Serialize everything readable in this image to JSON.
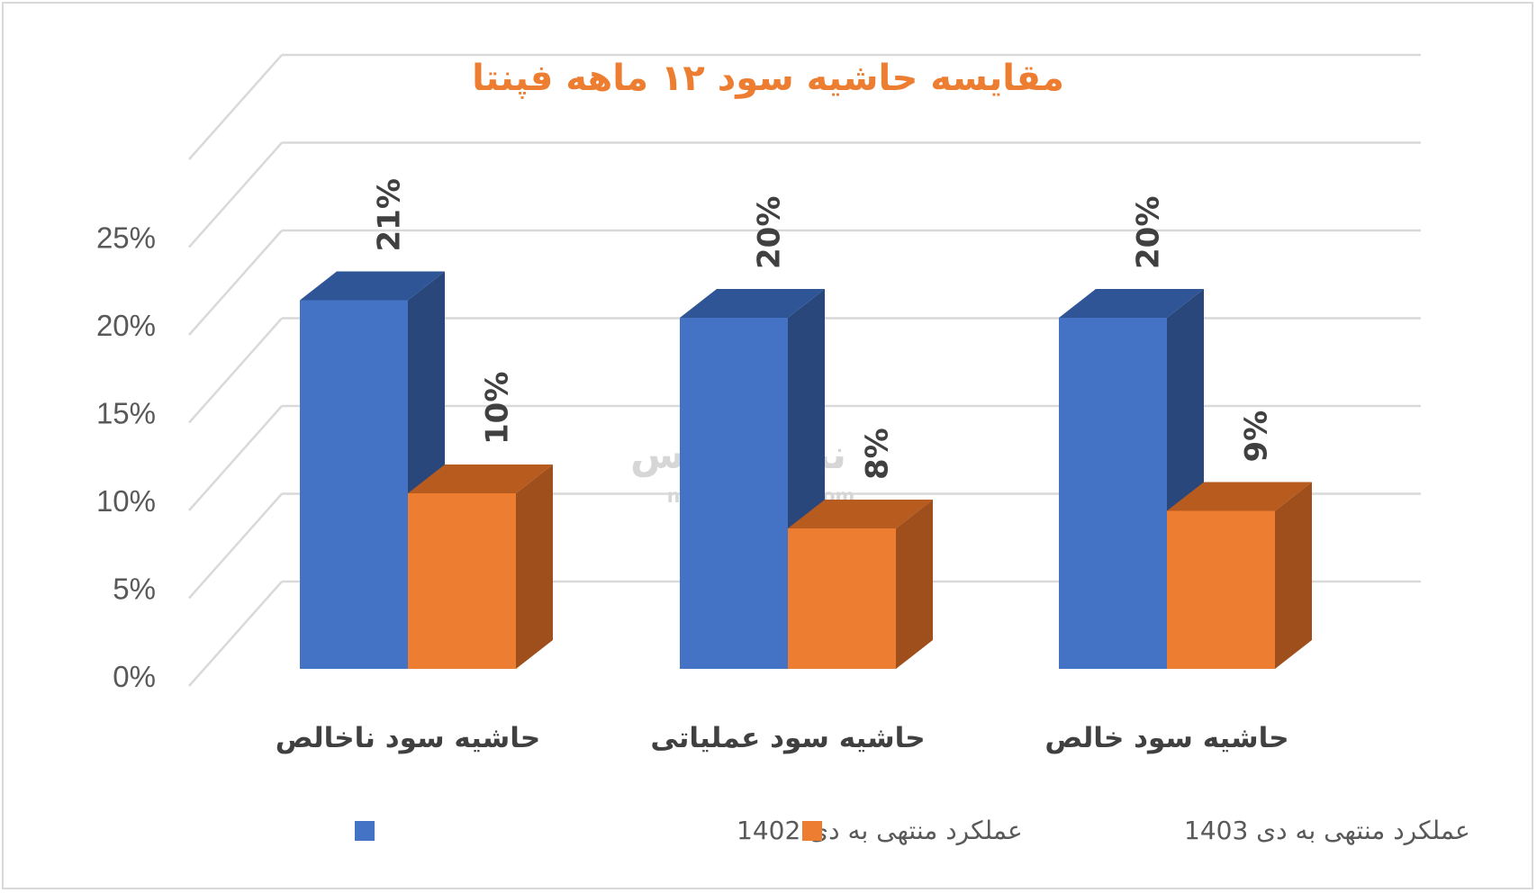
{
  "chart_data": {
    "type": "bar",
    "title": "مقایسه حاشیه سود ۱۲ ماهه فپنتا",
    "categories": [
      "حاشیه سود ناخالص",
      "حاشیه سود عملیاتی",
      "حاشیه سود خالص"
    ],
    "series": [
      {
        "name": "عملکرد منتهی به دی 1402",
        "values": [
          21,
          20,
          20
        ],
        "labels": [
          "21%",
          "20%",
          "20%"
        ],
        "color": "#4472c4",
        "side_color": "#2a477c",
        "top_color": "#2f5597"
      },
      {
        "name": "عملکرد منتهی به دی 1403",
        "values": [
          10,
          8,
          9
        ],
        "labels": [
          "10%",
          "8%",
          "9%"
        ],
        "color": "#ed7d31",
        "side_color": "#9e4f1b",
        "top_color": "#b85b1f"
      }
    ],
    "yticks": [
      "0%",
      "5%",
      "10%",
      "15%",
      "20%",
      "25%"
    ],
    "ylim": [
      0,
      25
    ],
    "grid": true,
    "legend_position": "bottom",
    "three_d": true
  },
  "watermark": {
    "brand": "نبض بورس",
    "url": "nabzebourse.com"
  }
}
